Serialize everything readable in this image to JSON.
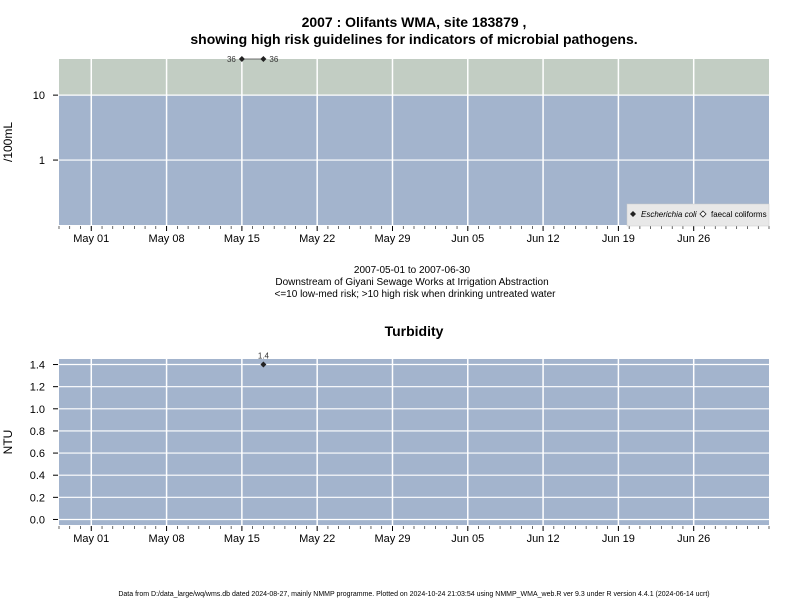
{
  "colors": {
    "band_low": "#a3b4cd",
    "band_high": "#c2cdc3",
    "panel_bg": "#a3b4cd",
    "grid": "#ffffff",
    "point": "#222222",
    "line": "#444444"
  },
  "x_axis": {
    "labels": [
      "May 01",
      "May 08",
      "May 15",
      "May 22",
      "May 29",
      "Jun 05",
      "Jun 12",
      "Jun 19",
      "Jun 26"
    ]
  },
  "top_chart": {
    "title_line1": "2007 : Olifants WMA, site 183879 ,",
    "title_line2": "showing high risk guidelines for indicators of microbial pathogens.",
    "ylabel": "/100mL",
    "y_ticks": [
      "1",
      "10"
    ],
    "legend": {
      "ecoli": "Escherichia coli",
      "faecal": "faecal coliforms"
    }
  },
  "subtitle": {
    "line1": "2007-05-01 to 2007-06-30",
    "line2": "Downstream of Giyani Sewage Works at Irrigation Abstraction",
    "line3": "<=10 low-med risk; >10 high risk when drinking untreated water"
  },
  "bottom_chart": {
    "title": "Turbidity",
    "ylabel": "NTU",
    "y_ticks": [
      "0.0",
      "0.2",
      "0.4",
      "0.6",
      "0.8",
      "1.0",
      "1.2",
      "1.4"
    ]
  },
  "footer": "Data from D:/data_large/wq/wms.db dated 2024-08-27, mainly NMMP programme. Plotted on 2024-10-24 21:03:54 using NMMP_WMA_web.R ver 9.3 under R version 4.4.1 (2024-06-14 ucrt)",
  "chart_data": [
    {
      "type": "line",
      "title": "2007 : Olifants WMA, site 183879 , showing high risk guidelines for indicators of microbial pathogens.",
      "ylabel": "/100mL",
      "y_scale": "log",
      "x_range": [
        "2007-04-28",
        "2007-07-03"
      ],
      "ylim": [
        0.1,
        36
      ],
      "guideline": 10,
      "bands": [
        {
          "from": 0.1,
          "to": 10,
          "meaning": "<=10 low-med risk"
        },
        {
          "from": 10,
          "to": 36,
          "meaning": ">10 high risk"
        }
      ],
      "legend_position": "bottom-right",
      "grid": true,
      "series": [
        {
          "name": "Escherichia coli",
          "marker": "filled-diamond",
          "points": [
            {
              "x": "2007-05-15",
              "y": 36,
              "label": "36"
            },
            {
              "x": "2007-05-17",
              "y": 36,
              "label": "36"
            }
          ]
        },
        {
          "name": "faecal coliforms",
          "marker": "open-diamond",
          "points": []
        }
      ]
    },
    {
      "type": "scatter",
      "title": "Turbidity",
      "ylabel": "NTU",
      "x_range": [
        "2007-04-28",
        "2007-07-03"
      ],
      "ylim": [
        -0.05,
        1.45
      ],
      "grid": true,
      "series": [
        {
          "points": [
            {
              "x": "2007-05-17",
              "y": 1.4,
              "label": "1.4"
            }
          ]
        }
      ]
    }
  ]
}
